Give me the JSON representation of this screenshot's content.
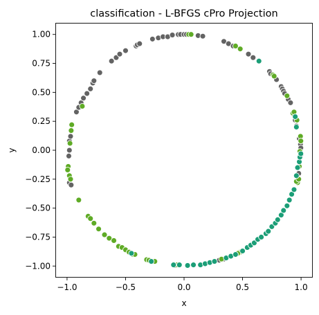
{
  "chart_data": {
    "type": "scatter",
    "title": "classification - L-BFGS cPro Projection",
    "xlabel": "x",
    "ylabel": "y",
    "xlim": [
      -1.1,
      1.1
    ],
    "ylim": [
      -1.1,
      1.1
    ],
    "xticks": [
      -1.0,
      -0.5,
      0.0,
      0.5,
      1.0
    ],
    "xtick_labels": [
      "−1.0",
      "−0.5",
      "0.0",
      "0.5",
      "1.0"
    ],
    "yticks": [
      1.0,
      0.75,
      0.5,
      0.25,
      0.0,
      -0.25,
      -0.5,
      -0.75,
      -1.0
    ],
    "ytick_labels": [
      "1.00",
      "0.75",
      "0.50",
      "0.25",
      "0.00",
      "−0.25",
      "−0.50",
      "−0.75",
      "−1.00"
    ],
    "grid": false,
    "legend": "none",
    "series": [
      {
        "color": "#636363",
        "points": [
          [
            -0.98,
            0.0
          ],
          [
            -0.985,
            -0.05
          ],
          [
            -0.98,
            0.08
          ],
          [
            -0.97,
            0.12
          ],
          [
            -0.96,
            0.17
          ],
          [
            -0.98,
            -0.28
          ],
          [
            -0.965,
            -0.3
          ],
          [
            -0.92,
            0.33
          ],
          [
            -0.9,
            0.37
          ],
          [
            -0.88,
            0.41
          ],
          [
            -0.86,
            0.45
          ],
          [
            -0.83,
            0.49
          ],
          [
            -0.8,
            0.53
          ],
          [
            -0.78,
            0.58
          ],
          [
            -0.77,
            0.6
          ],
          [
            -0.72,
            0.67
          ],
          [
            -0.62,
            0.77
          ],
          [
            -0.58,
            0.8
          ],
          [
            -0.55,
            0.83
          ],
          [
            -0.5,
            0.86
          ],
          [
            -0.41,
            0.9
          ],
          [
            -0.4,
            0.91
          ],
          [
            -0.38,
            0.92
          ],
          [
            -0.27,
            0.96
          ],
          [
            -0.22,
            0.97
          ],
          [
            -0.18,
            0.98
          ],
          [
            -0.14,
            0.98
          ],
          [
            -0.1,
            0.995
          ],
          [
            -0.05,
            0.999
          ],
          [
            -0.03,
            1.0
          ],
          [
            0.0,
            1.0
          ],
          [
            0.02,
            1.0
          ],
          [
            0.12,
            0.99
          ],
          [
            0.16,
            0.985
          ],
          [
            0.34,
            0.94
          ],
          [
            0.38,
            0.92
          ],
          [
            0.42,
            0.9
          ],
          [
            0.55,
            0.83
          ],
          [
            0.59,
            0.8
          ],
          [
            0.73,
            0.68
          ],
          [
            0.74,
            0.66
          ],
          [
            0.79,
            0.61
          ],
          [
            0.83,
            0.55
          ],
          [
            0.84,
            0.53
          ],
          [
            0.85,
            0.51
          ],
          [
            0.86,
            0.49
          ],
          [
            0.89,
            0.44
          ],
          [
            0.91,
            0.41
          ],
          [
            0.95,
            0.26
          ],
          [
            0.96,
            0.21
          ],
          [
            0.985,
            0.1
          ],
          [
            0.995,
            0.05
          ],
          [
            0.998,
            0.02
          ],
          [
            0.999,
            -0.04
          ],
          [
            0.98,
            -0.2
          ],
          [
            0.33,
            -0.945
          ],
          [
            0.34,
            -0.94
          ],
          [
            0.3,
            -0.95
          ],
          [
            -0.08,
            -0.995
          ]
        ]
      },
      {
        "color": "#5fab26",
        "points": [
          [
            -0.99,
            -0.14
          ],
          [
            -0.995,
            -0.17
          ],
          [
            -0.98,
            -0.22
          ],
          [
            -0.97,
            -0.25
          ],
          [
            -0.96,
            0.22
          ],
          [
            -0.965,
            0.17
          ],
          [
            -0.975,
            0.06
          ],
          [
            -0.87,
            0.38
          ],
          [
            -0.9,
            -0.43
          ],
          [
            -0.82,
            -0.57
          ],
          [
            -0.8,
            -0.59
          ],
          [
            -0.77,
            -0.63
          ],
          [
            -0.73,
            -0.68
          ],
          [
            -0.68,
            -0.73
          ],
          [
            -0.64,
            -0.76
          ],
          [
            -0.6,
            -0.78
          ],
          [
            -0.56,
            -0.83
          ],
          [
            -0.53,
            -0.84
          ],
          [
            -0.5,
            -0.86
          ],
          [
            -0.47,
            -0.88
          ],
          [
            -0.44,
            -0.9
          ],
          [
            -0.42,
            -0.9
          ],
          [
            -0.32,
            -0.945
          ],
          [
            -0.3,
            -0.95
          ],
          [
            -0.25,
            -0.96
          ],
          [
            -0.06,
            -0.99
          ],
          [
            0.04,
            1.0
          ],
          [
            0.06,
            1.0
          ],
          [
            0.48,
            0.875
          ],
          [
            0.44,
            0.9
          ],
          [
            0.76,
            0.65
          ],
          [
            0.77,
            0.64
          ],
          [
            0.88,
            0.47
          ],
          [
            0.93,
            0.32
          ],
          [
            0.94,
            0.33
          ],
          [
            0.965,
            0.26
          ],
          [
            0.995,
            0.12
          ],
          [
            0.998,
            0.08
          ],
          [
            0.99,
            -0.01
          ],
          [
            0.99,
            -0.05
          ],
          [
            0.985,
            -0.14
          ],
          [
            0.97,
            -0.28
          ],
          [
            0.96,
            -0.27
          ],
          [
            0.98,
            -0.25
          ],
          [
            0.48,
            -0.88
          ],
          [
            0.46,
            -0.89
          ],
          [
            0.32,
            -0.94
          ]
        ]
      },
      {
        "color": "#1b9e77",
        "points": [
          [
            -0.28,
            -0.96
          ],
          [
            -0.45,
            -0.89
          ],
          [
            -0.09,
            -0.99
          ],
          [
            -0.04,
            -0.99
          ],
          [
            0.03,
            -0.995
          ],
          [
            0.08,
            -0.99
          ],
          [
            0.14,
            -0.99
          ],
          [
            0.18,
            -0.98
          ],
          [
            0.22,
            -0.97
          ],
          [
            0.26,
            -0.96
          ],
          [
            0.36,
            -0.93
          ],
          [
            0.4,
            -0.915
          ],
          [
            0.44,
            -0.9
          ],
          [
            0.5,
            -0.87
          ],
          [
            0.54,
            -0.84
          ],
          [
            0.57,
            -0.82
          ],
          [
            0.6,
            -0.8
          ],
          [
            0.63,
            -0.77
          ],
          [
            0.66,
            -0.75
          ],
          [
            0.7,
            -0.72
          ],
          [
            0.72,
            -0.7
          ],
          [
            0.75,
            -0.66
          ],
          [
            0.78,
            -0.63
          ],
          [
            0.8,
            -0.6
          ],
          [
            0.83,
            -0.56
          ],
          [
            0.85,
            -0.52
          ],
          [
            0.88,
            -0.48
          ],
          [
            0.9,
            -0.43
          ],
          [
            0.92,
            -0.38
          ],
          [
            0.94,
            -0.34
          ],
          [
            0.96,
            -0.22
          ],
          [
            0.97,
            -0.15
          ],
          [
            0.985,
            -0.1
          ],
          [
            0.99,
            -0.06
          ],
          [
            0.998,
            -0.03
          ],
          [
            0.96,
            0.2
          ],
          [
            0.95,
            0.29
          ],
          [
            0.64,
            0.77
          ]
        ]
      }
    ]
  }
}
